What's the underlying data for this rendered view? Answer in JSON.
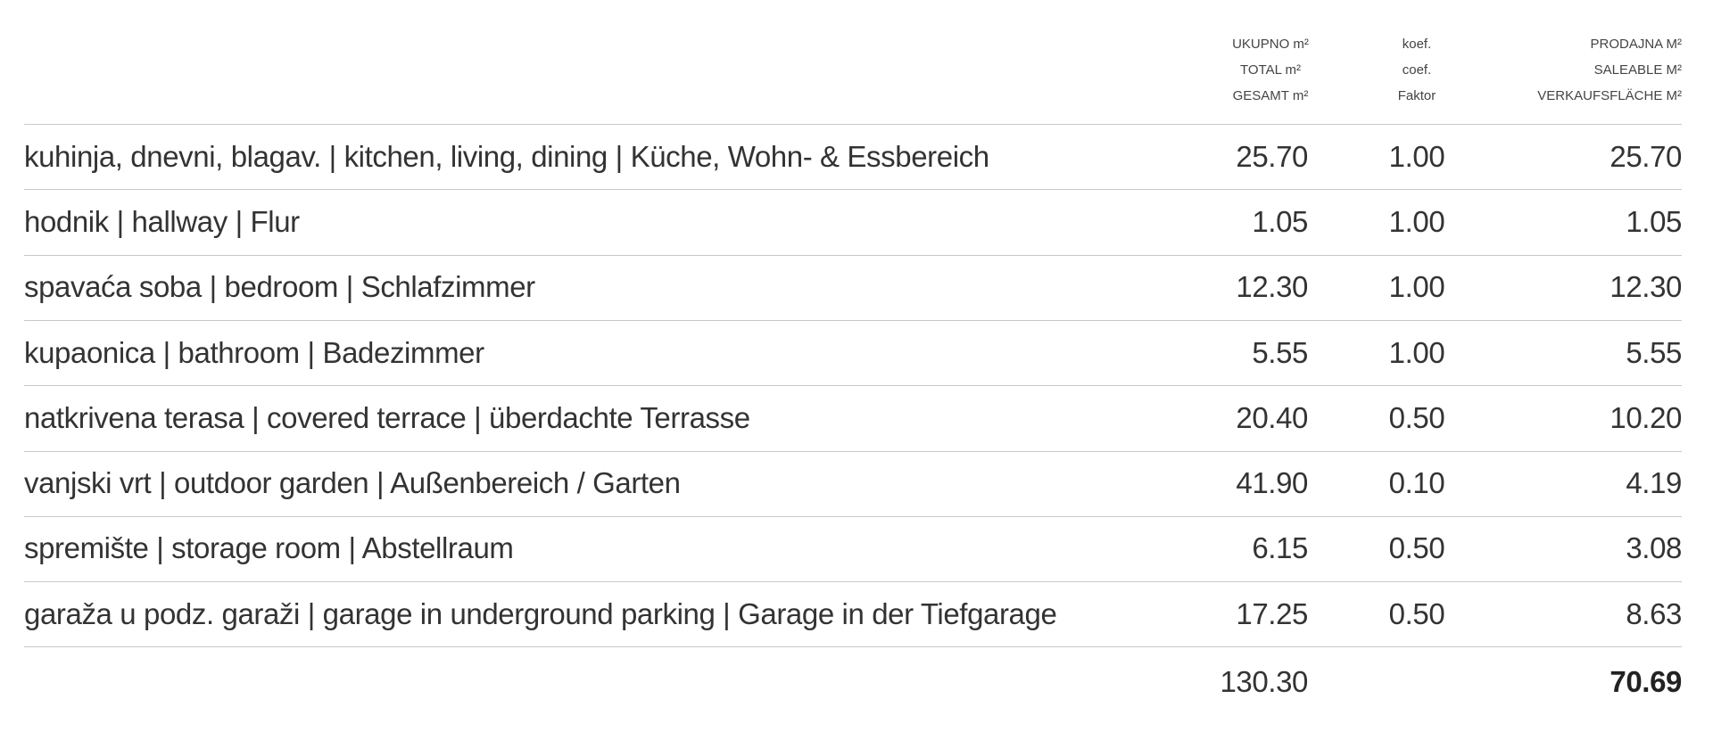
{
  "header": {
    "columns": [
      [
        "UKUPNO m²",
        "TOTAL m²",
        "GESAMT m²"
      ],
      [
        "koef.",
        "coef.",
        "Faktor"
      ],
      [
        "PRODAJNA M²",
        "SALEABLE M²",
        "VERKAUFSFLÄCHE M²"
      ]
    ]
  },
  "table": {
    "rows": [
      [
        "kuhinja, dnevni, blagav. | kitchen, living, dining | Küche, Wohn- & Essbereich",
        "25.70",
        "1.00",
        "25.70"
      ],
      [
        "hodnik | hallway | Flur",
        "1.05",
        "1.00",
        "1.05"
      ],
      [
        "spavaća soba | bedroom | Schlafzimmer",
        "12.30",
        "1.00",
        "12.30"
      ],
      [
        "kupaonica | bathroom | Badezimmer",
        "5.55",
        "1.00",
        "5.55"
      ],
      [
        "natkrivena terasa | covered terrace | überdachte Terrasse",
        "20.40",
        "0.50",
        "10.20"
      ],
      [
        "vanjski vrt | outdoor garden | Außenbereich / Garten",
        "41.90",
        "0.10",
        "4.19"
      ],
      [
        "spremište | storage room | Abstellraum",
        "6.15",
        "0.50",
        "3.08"
      ],
      [
        "garaža u podz. garaži | garage in underground parking | Garage in der Tiefgarage",
        "17.25",
        "0.50",
        "8.63"
      ]
    ],
    "totals": {
      "total": "130.30",
      "saleable": "70.69"
    }
  }
}
